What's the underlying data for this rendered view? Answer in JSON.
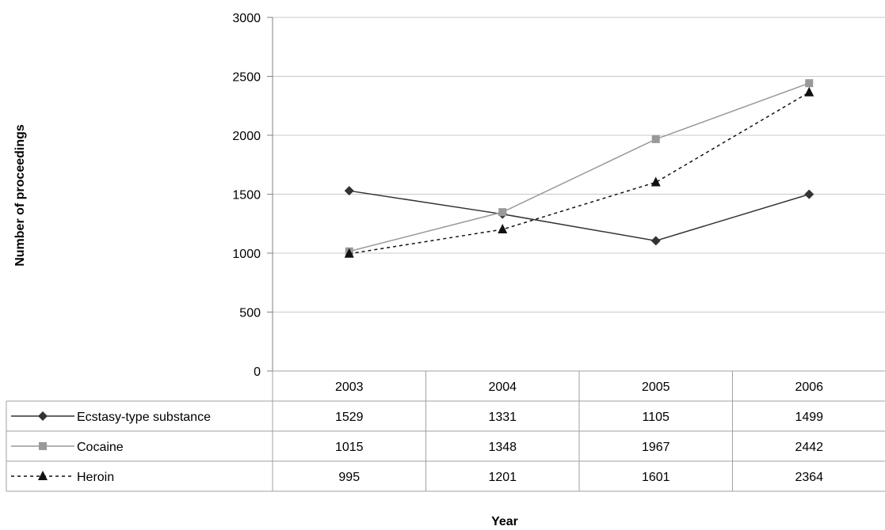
{
  "chart_data": {
    "type": "line",
    "ylabel": "Number of proceedings",
    "xlabel": "Year",
    "ylim": [
      0,
      3000
    ],
    "yticks": [
      0,
      500,
      1000,
      1500,
      2000,
      2500,
      3000
    ],
    "categories": [
      "2003",
      "2004",
      "2005",
      "2006"
    ],
    "grid": true,
    "legend": "data-table-below",
    "series": [
      {
        "name": "Ecstasy-type substance",
        "values": [
          1529,
          1331,
          1105,
          1499
        ],
        "color": "#333333",
        "marker": "diamond",
        "dash": "solid"
      },
      {
        "name": "Cocaine",
        "values": [
          1015,
          1348,
          1967,
          2442
        ],
        "color": "#999999",
        "marker": "square",
        "dash": "solid"
      },
      {
        "name": "Heroin",
        "values": [
          995,
          1201,
          1601,
          2364
        ],
        "color": "#111111",
        "marker": "triangle",
        "dash": "dashed"
      }
    ]
  }
}
